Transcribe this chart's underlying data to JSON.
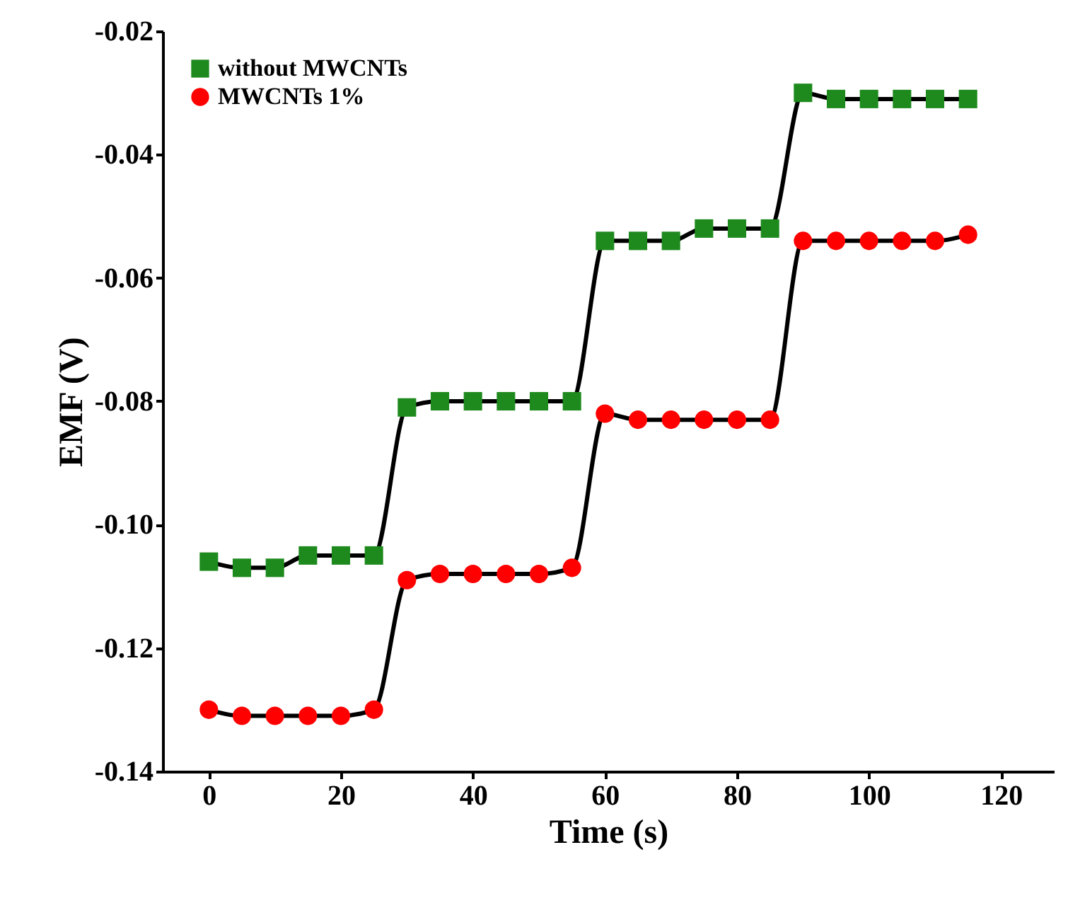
{
  "chart_data": {
    "type": "line",
    "xlabel": "Time (s)",
    "ylabel": "EMF (V)",
    "x": [
      0,
      5,
      10,
      15,
      20,
      25,
      30,
      35,
      40,
      45,
      50,
      55,
      60,
      65,
      70,
      75,
      80,
      85,
      90,
      95,
      100,
      105,
      110,
      115
    ],
    "series": [
      {
        "name": "without MWCNTs",
        "color": "#1e8a1e",
        "marker": "square",
        "values": [
          -0.106,
          -0.107,
          -0.107,
          -0.105,
          -0.105,
          -0.105,
          -0.081,
          -0.08,
          -0.08,
          -0.08,
          -0.08,
          -0.08,
          -0.054,
          -0.054,
          -0.054,
          -0.052,
          -0.052,
          -0.052,
          -0.03,
          -0.031,
          -0.031,
          -0.031,
          -0.031,
          -0.031
        ]
      },
      {
        "name": "MWCNTs 1%",
        "color": "#ff0000",
        "marker": "circle",
        "values": [
          -0.13,
          -0.131,
          -0.131,
          -0.131,
          -0.131,
          -0.13,
          -0.109,
          -0.108,
          -0.108,
          -0.108,
          -0.108,
          -0.107,
          -0.082,
          -0.083,
          -0.083,
          -0.083,
          -0.083,
          -0.083,
          -0.054,
          -0.054,
          -0.054,
          -0.054,
          -0.054,
          -0.053
        ]
      }
    ],
    "xlim": [
      -7,
      128
    ],
    "xticks": [
      0,
      20,
      40,
      60,
      80,
      100,
      120
    ],
    "ylim": [
      -0.14,
      -0.02
    ],
    "yticks": [
      {
        "value": -0.14,
        "label": "-0.14"
      },
      {
        "value": -0.12,
        "label": "-0.12"
      },
      {
        "value": -0.1,
        "label": "-0.10"
      },
      {
        "value": -0.08,
        "label": "-0.08"
      },
      {
        "value": -0.06,
        "label": "-0.06"
      },
      {
        "value": -0.04,
        "label": "-0.04"
      },
      {
        "value": -0.02,
        "label": "-0.02"
      }
    ],
    "grid": false,
    "legend": "top left",
    "line_style": "solid"
  }
}
